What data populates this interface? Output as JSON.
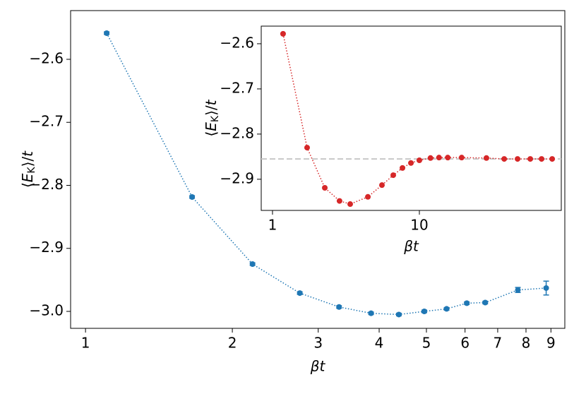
{
  "chart_data": [
    {
      "type": "line",
      "xlabel": "βt",
      "ylabel": "⟨EK⟩/t",
      "xscale": "log",
      "xlim": [
        0.932,
        9.61
      ],
      "ylim": [
        -3.0269,
        -2.5227
      ],
      "xticks": [
        1,
        2,
        3,
        4,
        5,
        6,
        7,
        8,
        9
      ],
      "yticks": [
        {
          "value": -3.0,
          "label": "−3.0"
        },
        {
          "value": -2.9,
          "label": "−2.9"
        },
        {
          "value": -2.8,
          "label": "−2.8"
        },
        {
          "value": -2.7,
          "label": "−2.7"
        },
        {
          "value": -2.6,
          "label": "−2.6"
        }
      ],
      "x": [
        1.105,
        1.654,
        2.2,
        2.75,
        3.31,
        3.85,
        4.39,
        4.95,
        5.5,
        6.05,
        6.6,
        7.7,
        8.8
      ],
      "series": [
        {
          "color": "#1f77b4",
          "values": [
            -2.5585,
            -2.8185,
            -2.925,
            -2.971,
            -2.993,
            -3.003,
            -3.005,
            -3.0,
            -2.996,
            -2.987,
            -2.986,
            -2.966,
            -2.963
          ],
          "errors": [
            0.002,
            0.002,
            0.002,
            0.002,
            0.002,
            0.002,
            0.002,
            0.002,
            0.002,
            0.002,
            0.002,
            0.004,
            0.011
          ]
        }
      ]
    },
    {
      "type": "line",
      "xlabel": "βt",
      "ylabel": "⟨EK⟩/t",
      "xscale": "log",
      "xlim": [
        0.838,
        92.5
      ],
      "ylim": [
        -2.969,
        -2.561
      ],
      "xticks": [
        1,
        10
      ],
      "yticks": [
        {
          "value": -2.9,
          "label": "−2.9"
        },
        {
          "value": -2.8,
          "label": "−2.8"
        },
        {
          "value": -2.7,
          "label": "−2.7"
        },
        {
          "value": -2.6,
          "label": "−2.6"
        }
      ],
      "hline": {
        "value": -2.855,
        "color": "#c8c8c8"
      },
      "x": [
        1.18,
        1.72,
        2.27,
        2.86,
        3.38,
        4.46,
        5.56,
        6.64,
        7.67,
        8.76,
        10,
        11.9,
        13.6,
        15.6,
        19.4,
        28.6,
        37.8,
        46.6,
        56.9,
        67.9,
        80.2
      ],
      "series": [
        {
          "color": "#d62728",
          "values": [
            -2.578,
            -2.83,
            -2.919,
            -2.948,
            -2.955,
            -2.939,
            -2.913,
            -2.891,
            -2.875,
            -2.864,
            -2.858,
            -2.853,
            -2.852,
            -2.852,
            -2.852,
            -2.853,
            -2.855,
            -2.855,
            -2.855,
            -2.855,
            -2.855
          ]
        }
      ]
    }
  ]
}
